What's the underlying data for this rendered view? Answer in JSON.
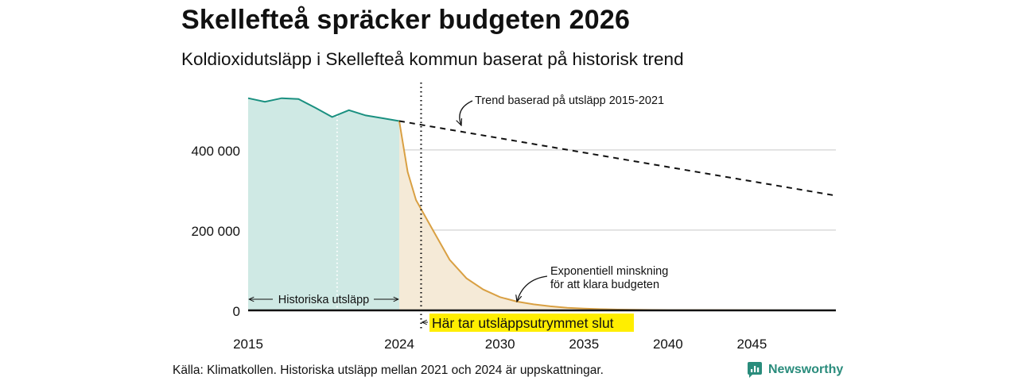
{
  "title": "Skellefteå spräcker budgeten 2026",
  "subtitle": "Koldioxidutsläpp i Skellefteå kommun baserat på historisk trend",
  "source": "Källa: Klimatkollen. Historiska utsläpp mellan 2021 och 2024 är uppskattningar.",
  "brand": "Newsworthy",
  "colors": {
    "historical_line": "#1a9080",
    "historical_fill": "#cfe9e4",
    "budget_line": "#d9a043",
    "budget_fill": "#f5ead7",
    "highlight": "#ffee00",
    "grid": "#d9d9d9"
  },
  "chart_data": {
    "type": "line",
    "title": "Skellefteå spräcker budgeten 2026",
    "subtitle": "Koldioxidutsläpp i Skellefteå kommun baserat på historisk trend",
    "xlim": [
      2015,
      2050
    ],
    "ylim": [
      0,
      560000
    ],
    "x_ticks": [
      {
        "value": 2015,
        "label": "2015"
      },
      {
        "value": 2024,
        "label": "2024"
      },
      {
        "value": 2030,
        "label": "2030"
      },
      {
        "value": 2035,
        "label": "2035"
      },
      {
        "value": 2040,
        "label": "2040"
      },
      {
        "value": 2045,
        "label": "2045"
      }
    ],
    "y_ticks": [
      {
        "value": 0,
        "label": "0"
      },
      {
        "value": 200000,
        "label": "200 000"
      },
      {
        "value": 400000,
        "label": "400 000"
      }
    ],
    "series": [
      {
        "name": "Historiska utsläpp",
        "style": "solid-area",
        "x": [
          2015,
          2016,
          2017,
          2018,
          2019,
          2020,
          2021,
          2022,
          2023,
          2024
        ],
        "values": [
          529000,
          520000,
          529000,
          527000,
          505000,
          482000,
          499000,
          486000,
          479000,
          472000
        ]
      },
      {
        "name": "Exponentiell minskning för att klara budgeten",
        "style": "solid-area",
        "x": [
          2024,
          2024.5,
          2025,
          2026,
          2027,
          2028,
          2029,
          2030,
          2031,
          2032,
          2033,
          2034,
          2035,
          2036,
          2037,
          2038,
          2039,
          2040,
          2042,
          2045,
          2050
        ],
        "values": [
          472000,
          345000,
          275000,
          200000,
          126000,
          80000,
          52000,
          33000,
          22000,
          15000,
          10000,
          6500,
          4500,
          3000,
          2000,
          1500,
          1000,
          600,
          300,
          100,
          0
        ]
      },
      {
        "name": "Trend baserad på utsläpp 2015-2021",
        "style": "dashed",
        "x": [
          2024,
          2050
        ],
        "values": [
          472000,
          286000
        ]
      }
    ],
    "markers": [
      {
        "type": "vertical-dotted",
        "x": 2020.3,
        "color": "white"
      },
      {
        "type": "vertical-dotted",
        "x": 2025.3,
        "color": "black"
      }
    ],
    "annotations": {
      "trend": "Trend baserad på utsläpp 2015-2021",
      "exp_line1": "Exponentiell minskning",
      "exp_line2": "för att klara budgeten",
      "historical": "Historiska utsläpp",
      "budget_end": "Här tar utsläppsutrymmet slut"
    }
  }
}
